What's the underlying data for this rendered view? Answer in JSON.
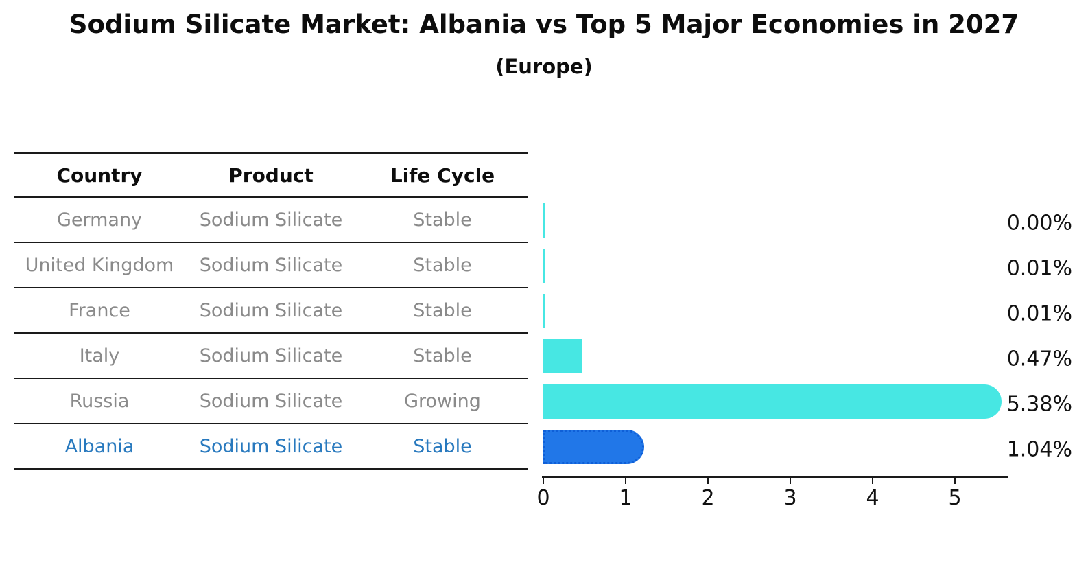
{
  "title": "Sodium Silicate Market: Albania vs Top 5 Major Economies in 2027",
  "subtitle": "(Europe)",
  "colors": {
    "bar_default": "#47E7E3",
    "bar_highlight": "#2177E8",
    "highlight_text": "#2879BE",
    "table_text": "#8A8A8A",
    "text": "#0D0D0D"
  },
  "table": {
    "headers": [
      "Country",
      "Product",
      "Life Cycle"
    ],
    "rows": [
      {
        "country": "Germany",
        "product": "Sodium Silicate",
        "life_cycle": "Stable",
        "highlighted": false
      },
      {
        "country": "United Kingdom",
        "product": "Sodium Silicate",
        "life_cycle": "Stable",
        "highlighted": false
      },
      {
        "country": "France",
        "product": "Sodium Silicate",
        "life_cycle": "Stable",
        "highlighted": false
      },
      {
        "country": "Italy",
        "product": "Sodium Silicate",
        "life_cycle": "Stable",
        "highlighted": false
      },
      {
        "country": "Russia",
        "product": "Sodium Silicate",
        "life_cycle": "Growing",
        "highlighted": false
      },
      {
        "country": "Albania",
        "product": "Sodium Silicate",
        "life_cycle": "Stable",
        "highlighted": true
      }
    ]
  },
  "chart_data": {
    "type": "bar",
    "orientation": "horizontal",
    "title": "Sodium Silicate Market: Albania vs Top 5 Major Economies in 2027",
    "subtitle": "(Europe)",
    "categories": [
      "Germany",
      "United Kingdom",
      "France",
      "Italy",
      "Russia",
      "Albania"
    ],
    "values": [
      0.0,
      0.01,
      0.01,
      0.47,
      5.38,
      1.04
    ],
    "value_labels": [
      "0.00%",
      "0.01%",
      "0.01%",
      "0.47%",
      "5.38%",
      "1.04%"
    ],
    "x_ticks": [
      "0",
      "1",
      "2",
      "3",
      "4",
      "5"
    ],
    "xlim": [
      0,
      5.65
    ],
    "xlabel": "",
    "ylabel": "",
    "grid": false,
    "legend": "none",
    "highlight_category": "Albania"
  }
}
